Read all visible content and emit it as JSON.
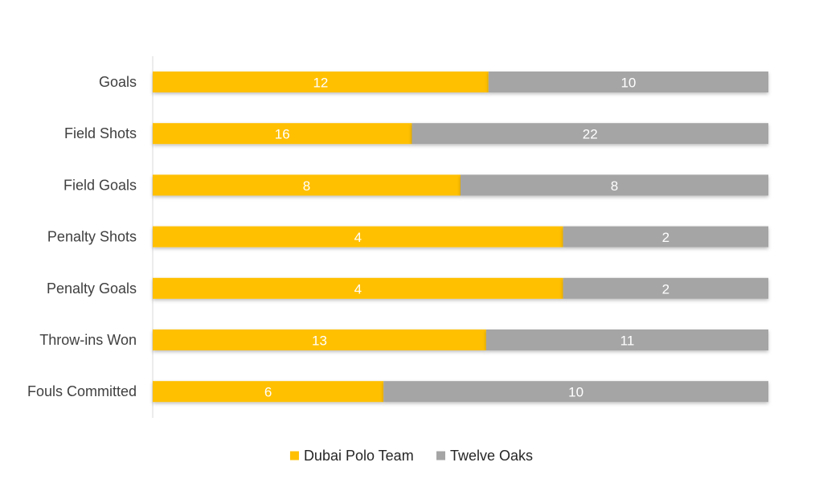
{
  "chart_data": {
    "type": "bar",
    "orientation": "horizontal",
    "stacking": "percent",
    "categories": [
      "Goals",
      "Field Shots",
      "Field Goals",
      "Penalty Shots",
      "Penalty Goals",
      "Throw-ins Won",
      "Fouls Committed"
    ],
    "series": [
      {
        "name": "Dubai Polo Team",
        "color": "#FFC000",
        "values": [
          12,
          16,
          8,
          4,
          4,
          13,
          6
        ]
      },
      {
        "name": "Twelve Oaks",
        "color": "#A5A5A5",
        "values": [
          10,
          22,
          8,
          2,
          2,
          11,
          10
        ]
      }
    ],
    "xlabel": "",
    "ylabel": "",
    "grid": false,
    "legend_position": "bottom"
  }
}
